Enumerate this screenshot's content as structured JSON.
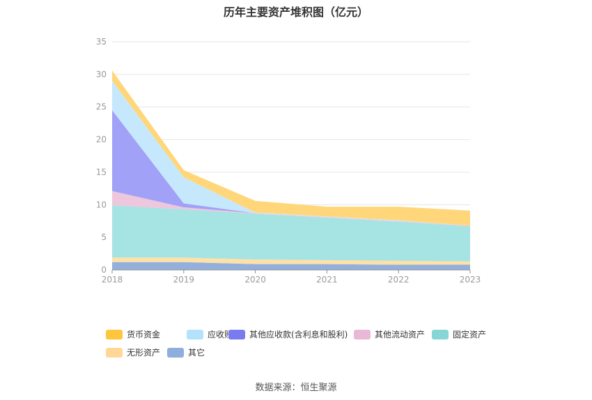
{
  "chart_data": {
    "type": "area",
    "stacked": true,
    "title": "历年主要资产堆积图（亿元）",
    "categories": [
      "2018",
      "2019",
      "2020",
      "2021",
      "2022",
      "2023"
    ],
    "ylim": [
      0,
      35
    ],
    "yticks": [
      0,
      5,
      10,
      15,
      20,
      25,
      30,
      35
    ],
    "grid": true,
    "legend_position": "bottom",
    "series": [
      {
        "name": "其它",
        "color": "#93b0dd",
        "values": [
          1.2,
          1.2,
          0.9,
          0.9,
          0.8,
          0.8
        ]
      },
      {
        "name": "无形资产",
        "color": "#ffe0a6",
        "values": [
          0.7,
          0.7,
          0.7,
          0.6,
          0.6,
          0.5
        ]
      },
      {
        "name": "固定资产",
        "color": "#a6e3e3",
        "values": [
          8.0,
          7.4,
          7.0,
          6.5,
          6.0,
          5.4
        ]
      },
      {
        "name": "其他流动资产",
        "color": "#ecc7dd",
        "values": [
          2.2,
          0.3,
          0.1,
          0.1,
          0.1,
          0.1
        ]
      },
      {
        "name": "其他应收款(含利息和股利)",
        "color": "#a1a1f7",
        "values": [
          12.4,
          0.6,
          0.0,
          0.0,
          0.0,
          0.0
        ]
      },
      {
        "name": "应收账款",
        "color": "#c6e8fc",
        "values": [
          4.5,
          4.0,
          0.1,
          0.1,
          0.1,
          0.0
        ]
      },
      {
        "name": "货币资金",
        "color": "#ffd77a",
        "values": [
          1.6,
          1.1,
          1.8,
          1.5,
          2.1,
          2.3
        ]
      }
    ],
    "legend_order": [
      "货币资金",
      "应收账款",
      "其他应收款(含利息和股利)",
      "其他流动资产",
      "固定资产",
      "无形资产",
      "其它"
    ],
    "legend_colors": {
      "货币资金": "#ffc53d",
      "应收账款": "#b4e2fd",
      "其他应收款(含利息和股利)": "#7b7bf0",
      "其他流动资产": "#e8b8d6",
      "固定资产": "#86d6d6",
      "无形资产": "#ffd898",
      "其它": "#8eaedd"
    }
  },
  "source_text": "数据来源：恒生聚源"
}
